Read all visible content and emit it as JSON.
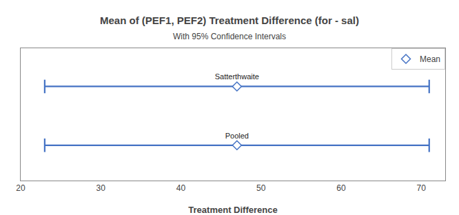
{
  "chart_data": {
    "type": "forest",
    "title": "Mean of (PEF1, PEF2) Treatment Difference (for - sal)",
    "subtitle": "With 95% Confidence Intervals",
    "xlabel": "Treatment Difference",
    "categories": [
      "Satterthwaite",
      "Pooled"
    ],
    "series": [
      {
        "name": "Mean",
        "color": "#4472C4",
        "marker": "diamond",
        "values": [
          47,
          47
        ],
        "ci_low": [
          23,
          23
        ],
        "ci_high": [
          71,
          71
        ]
      }
    ],
    "xlim": [
      20,
      73
    ],
    "xticks": [
      20,
      30,
      40,
      50,
      60,
      70
    ],
    "grid": false,
    "legend": "upper right",
    "tick_labels": "x"
  }
}
